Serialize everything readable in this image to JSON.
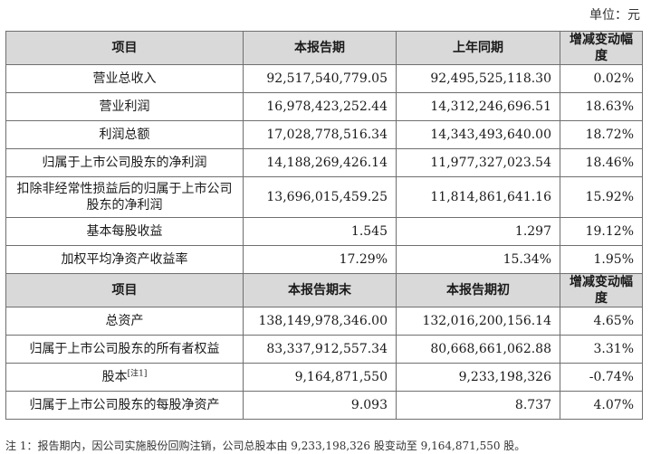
{
  "unit_label": "单位：元",
  "table1": {
    "headers": [
      "项目",
      "本报告期",
      "上年同期",
      "增减变动幅度"
    ],
    "rows": [
      [
        "营业总收入",
        "92,517,540,779.05",
        "92,495,525,118.30",
        "0.02%"
      ],
      [
        "营业利润",
        "16,978,423,252.44",
        "14,312,246,696.51",
        "18.63%"
      ],
      [
        "利润总额",
        "17,028,778,516.34",
        "14,343,493,640.00",
        "18.72%"
      ],
      [
        "归属于上市公司股东的净利润",
        "14,188,269,426.14",
        "11,977,327,023.54",
        "18.46%"
      ],
      [
        "扣除非经常性损益后的归属于上市公司股东的净利润",
        "13,696,015,459.25",
        "11,814,861,641.16",
        "15.92%"
      ],
      [
        "基本每股收益",
        "1.545",
        "1.297",
        "19.12%"
      ],
      [
        "加权平均净资产收益率",
        "17.29%",
        "15.34%",
        "1.95%"
      ]
    ]
  },
  "table2": {
    "headers": [
      "项目",
      "本报告期末",
      "本报告期初",
      "增减变动幅度"
    ],
    "rows": [
      [
        "总资产",
        "138,149,978,346.00",
        "132,016,200,156.14",
        "4.65%"
      ],
      [
        "归属于上市公司股东的所有者权益",
        "83,337,912,557.34",
        "80,668,661,062.88",
        "3.31%"
      ],
      [
        "股本",
        "9,164,871,550",
        "9,233,198,326",
        "-0.74%"
      ],
      [
        "归属于上市公司股东的每股净资产",
        "9.093",
        "8.737",
        "4.07%"
      ]
    ],
    "share_capital_note_mark": "[注1]"
  },
  "footnote": "注 1：报告期内，因公司实施股份回购注销，公司总股本由 9,233,198,326 股变动至 9,164,871,550 股。"
}
